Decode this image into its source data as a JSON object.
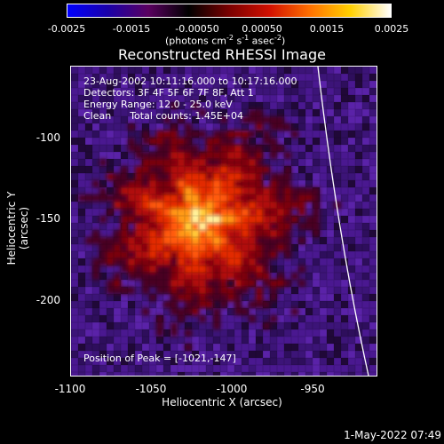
{
  "colorbar": {
    "ticks": [
      "-0.0025",
      "-0.0015",
      "-0.00050",
      "0.00050",
      "0.0015",
      "0.0025"
    ],
    "units_main": "(photons cm",
    "units_sup1": "-2",
    "units_mid1": " s",
    "units_sup2": "-1",
    "units_mid2": " asec",
    "units_sup3": "-2",
    "units_end": ")",
    "colors": [
      "#0000ff",
      "#1a00a8",
      "#5a0060",
      "#000000",
      "#7a0000",
      "#d21000",
      "#ff7000",
      "#ffd000",
      "#ffffff"
    ]
  },
  "title": "Reconstructed RHESSI Image",
  "info": {
    "time_range": "23-Aug-2002 10:11:16.000 to 10:17:16.000",
    "detectors": "Detectors: 3F 4F 5F 6F 7F 8F, Att 1",
    "energy": "Energy Range: 12.0 - 25.0 keV",
    "clean": "Clean      Total counts: 1.45E+04",
    "peak": "Position of Peak = [-1021,-147]"
  },
  "axes": {
    "xlabel": "Heliocentric X (arcsec)",
    "ylabel": "Heliocentric Y (arcsec)",
    "xticks": [
      "-1100",
      "-1050",
      "-1000",
      "-950"
    ],
    "yticks": [
      "-100",
      "-150",
      "-200"
    ],
    "xlim": [
      -1100,
      -910
    ],
    "ylim": [
      -245,
      -72
    ]
  },
  "datestamp": "1-May-2022 07:49"
}
